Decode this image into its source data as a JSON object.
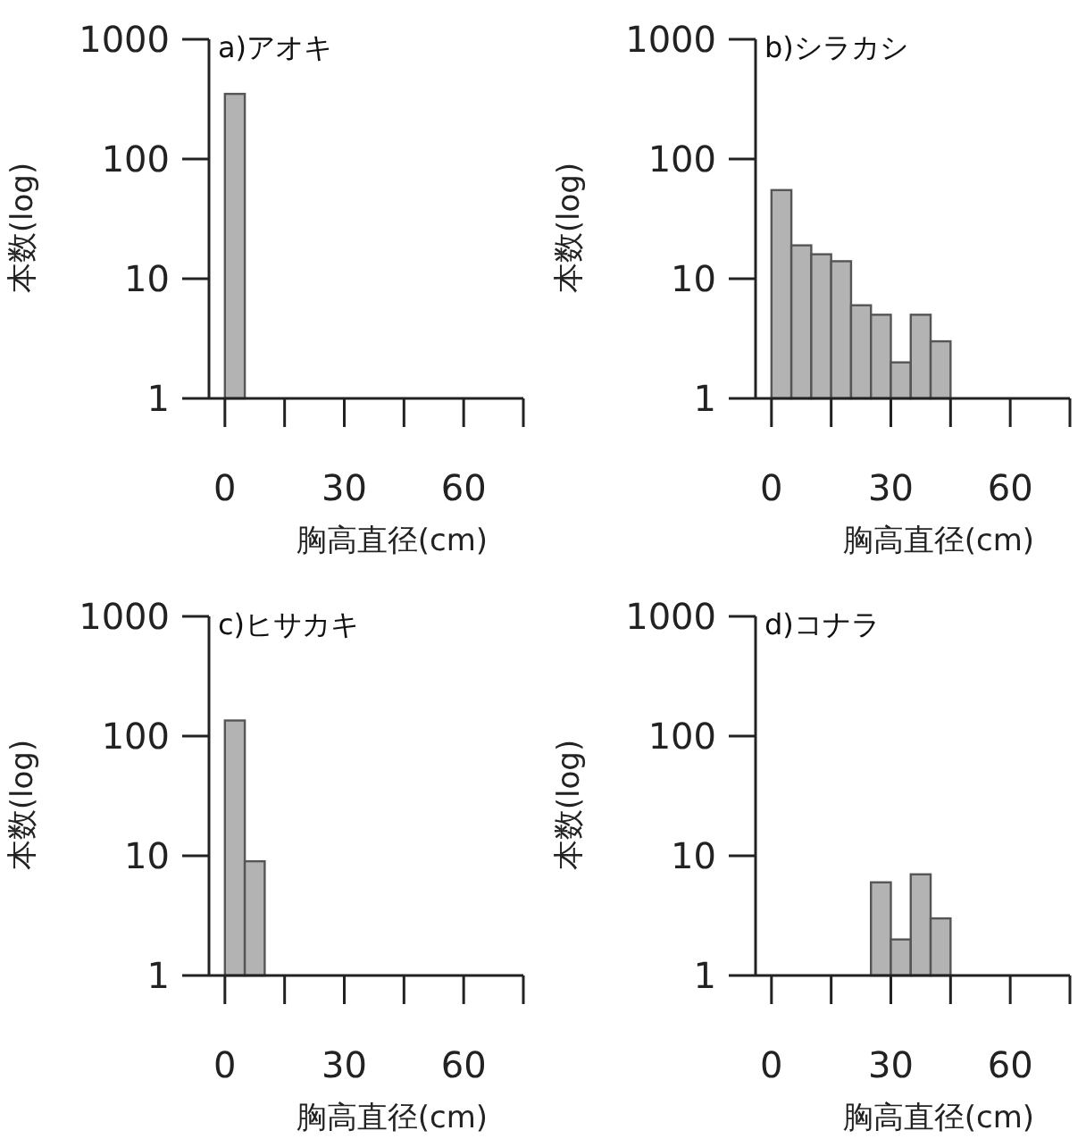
{
  "chart_data": [
    {
      "type": "histogram",
      "title": "a)アオキ",
      "xlabel": "胸高直径(cm)",
      "ylabel": "本数(log)",
      "bins": [
        0,
        5
      ],
      "values": [
        350
      ],
      "color": "#b3b3b3",
      "xlim": [
        -4,
        75
      ],
      "xticks": [
        0,
        {
          "value": 15,
          "label": null
        },
        30,
        {
          "value": 45,
          "label": null
        },
        60,
        {
          "value": 75,
          "label": null
        }
      ],
      "ylim": [
        1,
        1000
      ],
      "yticks": [
        1,
        10,
        100,
        1000
      ],
      "log": "y"
    },
    {
      "type": "histogram",
      "title": "b)シラカシ",
      "xlabel": "胸高直径(cm)",
      "ylabel": "本数(log)",
      "bins": [
        0,
        5,
        10,
        15,
        20,
        25,
        30,
        35,
        40,
        45
      ],
      "values": [
        55,
        19,
        16,
        14,
        6,
        5,
        2,
        5,
        3
      ],
      "color": "#b3b3b3",
      "xlim": [
        -4,
        75
      ],
      "xticks": [
        0,
        {
          "value": 15,
          "label": null
        },
        30,
        {
          "value": 45,
          "label": null
        },
        60,
        {
          "value": 75,
          "label": null
        }
      ],
      "ylim": [
        1,
        1000
      ],
      "yticks": [
        1,
        10,
        100,
        1000
      ],
      "log": "y"
    },
    {
      "type": "histogram",
      "title": "c)ヒサカキ",
      "xlabel": "胸高直径(cm)",
      "ylabel": "本数(log)",
      "bins": [
        0,
        5,
        10
      ],
      "values": [
        135,
        9
      ],
      "color": "#b3b3b3",
      "xlim": [
        -4,
        75
      ],
      "xticks": [
        0,
        {
          "value": 15,
          "label": null
        },
        30,
        {
          "value": 45,
          "label": null
        },
        60,
        {
          "value": 75,
          "label": null
        }
      ],
      "ylim": [
        1,
        1000
      ],
      "yticks": [
        1,
        10,
        100,
        1000
      ],
      "log": "y"
    },
    {
      "type": "histogram",
      "title": "d)コナラ",
      "xlabel": "胸高直径(cm)",
      "ylabel": "本数(log)",
      "bins": [
        25,
        30,
        35,
        40,
        45
      ],
      "values": [
        6,
        2,
        7,
        3
      ],
      "color": "#b3b3b3",
      "xlim": [
        -4,
        75
      ],
      "xticks": [
        0,
        {
          "value": 15,
          "label": null
        },
        30,
        {
          "value": 45,
          "label": null
        },
        60,
        {
          "value": 75,
          "label": null
        }
      ],
      "ylim": [
        1,
        1000
      ],
      "yticks": [
        1,
        10,
        100,
        1000
      ],
      "log": "y"
    }
  ]
}
